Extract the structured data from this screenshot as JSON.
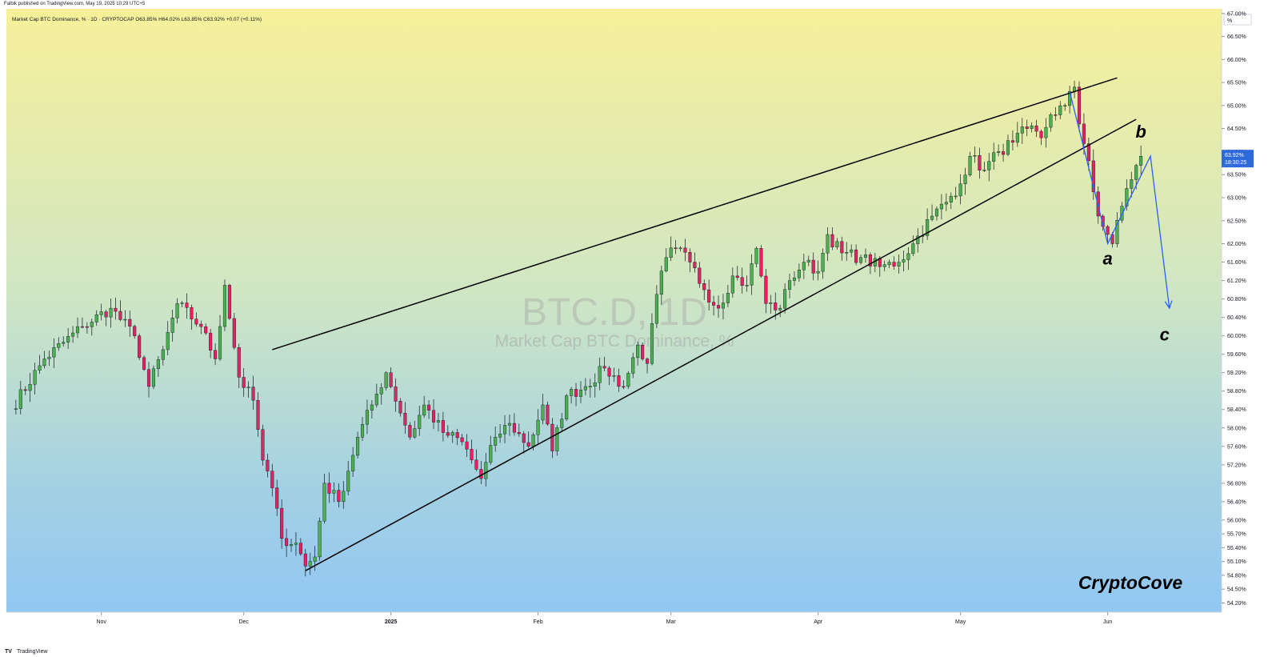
{
  "header": {
    "published": "Falbik published on TradingView.com, May 19, 2025 10:29 UTC+5"
  },
  "footer": {
    "brand": "TradingView",
    "brand_icon": "tradingview-logo-icon"
  },
  "chart_data": {
    "type": "candlestick",
    "legend": "Market Cap BTC Dominance, % · 1D · CRYPTOCAP  O63.85%  H64.02%  L63.85%  C63.92%  +0.07 (+0.11%)",
    "watermark_symbol": "BTC.D, 1D",
    "watermark_name": "Market Cap BTC Dominance, %",
    "axis_unit": "%",
    "last_price_label": "63.92%",
    "countdown_label": "18:30:25",
    "signature": "CryptoCove",
    "colors": {
      "up": "#4caf50",
      "down": "#e91e63",
      "wave": "#2962ff",
      "trendline": "#000000"
    },
    "ylim": [
      54.0,
      67.1
    ],
    "y_ticks": [
      {
        "v": 67.0,
        "label": "67.00%"
      },
      {
        "v": 66.5,
        "label": "66.50%"
      },
      {
        "v": 66.0,
        "label": "66.00%"
      },
      {
        "v": 65.5,
        "label": "65.50%"
      },
      {
        "v": 65.0,
        "label": "65.00%"
      },
      {
        "v": 64.5,
        "label": "64.50%"
      },
      {
        "v": 64.0,
        "label": "64.00%"
      },
      {
        "v": 63.5,
        "label": "63.50%"
      },
      {
        "v": 63.0,
        "label": "63.00%"
      },
      {
        "v": 62.5,
        "label": "62.50%"
      },
      {
        "v": 62.0,
        "label": "62.00%"
      },
      {
        "v": 61.6,
        "label": "61.60%"
      },
      {
        "v": 61.2,
        "label": "61.20%"
      },
      {
        "v": 60.8,
        "label": "60.80%"
      },
      {
        "v": 60.4,
        "label": "60.40%"
      },
      {
        "v": 60.0,
        "label": "60.00%"
      },
      {
        "v": 59.6,
        "label": "59.60%"
      },
      {
        "v": 59.2,
        "label": "59.20%"
      },
      {
        "v": 58.8,
        "label": "58.80%"
      },
      {
        "v": 58.4,
        "label": "58.40%"
      },
      {
        "v": 58.0,
        "label": "58.00%"
      },
      {
        "v": 57.6,
        "label": "57.60%"
      },
      {
        "v": 57.2,
        "label": "57.20%"
      },
      {
        "v": 56.8,
        "label": "56.80%"
      },
      {
        "v": 56.4,
        "label": "56.40%"
      },
      {
        "v": 56.0,
        "label": "56.00%"
      },
      {
        "v": 55.7,
        "label": "55.70%"
      },
      {
        "v": 55.4,
        "label": "55.40%"
      },
      {
        "v": 55.1,
        "label": "55.10%"
      },
      {
        "v": 54.8,
        "label": "54.80%"
      },
      {
        "v": 54.5,
        "label": "54.50%"
      },
      {
        "v": 54.2,
        "label": "54.20%"
      }
    ],
    "x_ticks": [
      {
        "date": "2024-11-01",
        "label": "Nov"
      },
      {
        "date": "2024-12-01",
        "label": "Dec"
      },
      {
        "date": "2025-01-01",
        "label": "2025"
      },
      {
        "date": "2025-02-01",
        "label": "Feb"
      },
      {
        "date": "2025-03-01",
        "label": "Mar"
      },
      {
        "date": "2025-04-01",
        "label": "Apr"
      },
      {
        "date": "2025-05-01",
        "label": "May"
      },
      {
        "date": "2025-06-01",
        "label": "Jun"
      }
    ],
    "xlim": [
      "2024-10-12",
      "2025-06-25"
    ],
    "anchors": [
      [
        "2024-10-13",
        58.4
      ],
      [
        "2024-10-20",
        59.5
      ],
      [
        "2024-10-28",
        60.2
      ],
      [
        "2024-11-03",
        60.6
      ],
      [
        "2024-11-08",
        60.0
      ],
      [
        "2024-11-11",
        58.9
      ],
      [
        "2024-11-14",
        59.7
      ],
      [
        "2024-11-17",
        60.7
      ],
      [
        "2024-11-22",
        60.2
      ],
      [
        "2024-11-25",
        59.5
      ],
      [
        "2024-11-27",
        61.1
      ],
      [
        "2024-11-30",
        59.1
      ],
      [
        "2024-12-03",
        58.6
      ],
      [
        "2024-12-05",
        57.3
      ],
      [
        "2024-12-07",
        56.7
      ],
      [
        "2024-12-09",
        55.6
      ],
      [
        "2024-12-12",
        55.5
      ],
      [
        "2024-12-14",
        55.0
      ],
      [
        "2024-12-16",
        55.2
      ],
      [
        "2024-12-18",
        56.8
      ],
      [
        "2024-12-21",
        56.4
      ],
      [
        "2024-12-25",
        57.8
      ],
      [
        "2024-12-28",
        58.5
      ],
      [
        "2024-12-31",
        59.2
      ],
      [
        "2025-01-05",
        57.8
      ],
      [
        "2025-01-08",
        58.5
      ],
      [
        "2025-01-12",
        57.9
      ],
      [
        "2025-01-16",
        57.7
      ],
      [
        "2025-01-20",
        56.9
      ],
      [
        "2025-01-23",
        57.8
      ],
      [
        "2025-01-26",
        58.1
      ],
      [
        "2025-01-30",
        57.6
      ],
      [
        "2025-02-02",
        58.5
      ],
      [
        "2025-02-04",
        57.5
      ],
      [
        "2025-02-07",
        58.7
      ],
      [
        "2025-02-11",
        58.9
      ],
      [
        "2025-02-15",
        59.3
      ],
      [
        "2025-02-19",
        58.9
      ],
      [
        "2025-02-22",
        59.8
      ],
      [
        "2025-02-24",
        59.4
      ],
      [
        "2025-02-26",
        60.9
      ],
      [
        "2025-02-28",
        61.7
      ],
      [
        "2025-03-02",
        61.9
      ],
      [
        "2025-03-05",
        61.6
      ],
      [
        "2025-03-08",
        61.0
      ],
      [
        "2025-03-11",
        60.6
      ],
      [
        "2025-03-14",
        61.3
      ],
      [
        "2025-03-17",
        61.1
      ],
      [
        "2025-03-19",
        61.9
      ],
      [
        "2025-03-21",
        60.7
      ],
      [
        "2025-03-24",
        60.6
      ],
      [
        "2025-03-26",
        61.2
      ],
      [
        "2025-03-29",
        61.6
      ],
      [
        "2025-04-01",
        61.4
      ],
      [
        "2025-04-03",
        62.2
      ],
      [
        "2025-04-06",
        61.8
      ],
      [
        "2025-04-10",
        61.7
      ],
      [
        "2025-04-14",
        61.5
      ],
      [
        "2025-04-18",
        61.6
      ],
      [
        "2025-04-21",
        62.0
      ],
      [
        "2025-04-25",
        62.6
      ],
      [
        "2025-04-28",
        62.9
      ],
      [
        "2025-05-01",
        63.3
      ],
      [
        "2025-05-03",
        63.9
      ],
      [
        "2025-05-06",
        63.6
      ],
      [
        "2025-05-09",
        64.0
      ],
      [
        "2025-05-12",
        64.2
      ],
      [
        "2025-05-15",
        64.5
      ],
      [
        "2025-05-18",
        64.3
      ],
      [
        "2025-05-20",
        64.8
      ],
      [
        "2025-05-23",
        65.0
      ],
      [
        "2025-05-25",
        65.4
      ],
      [
        "2025-05-26",
        64.6
      ],
      [
        "2025-05-28",
        63.8
      ],
      [
        "2025-05-30",
        62.6
      ],
      [
        "2025-06-01",
        62.2
      ],
      [
        "2025-06-02",
        62.0
      ],
      [
        "2025-06-05",
        63.2
      ],
      [
        "2025-06-08",
        63.9
      ]
    ],
    "trendlines": [
      {
        "name": "upper-trendline",
        "from": [
          "2024-12-07",
          59.7
        ],
        "to": [
          "2025-06-03",
          65.6
        ]
      },
      {
        "name": "lower-trendline",
        "from": [
          "2024-12-14",
          54.9
        ],
        "to": [
          "2025-06-07",
          64.7
        ]
      }
    ],
    "wave_path": [
      [
        "2025-05-24",
        65.3
      ],
      [
        "2025-06-01",
        62.0
      ],
      [
        "2025-06-10",
        63.9
      ],
      [
        "2025-06-14",
        60.6
      ]
    ],
    "wave_labels": [
      {
        "text": "a",
        "at": [
          "2025-06-01",
          61.55
        ]
      },
      {
        "text": "b",
        "at": [
          "2025-06-08",
          64.3
        ]
      },
      {
        "text": "c",
        "at": [
          "2025-06-13",
          59.9
        ]
      }
    ]
  }
}
